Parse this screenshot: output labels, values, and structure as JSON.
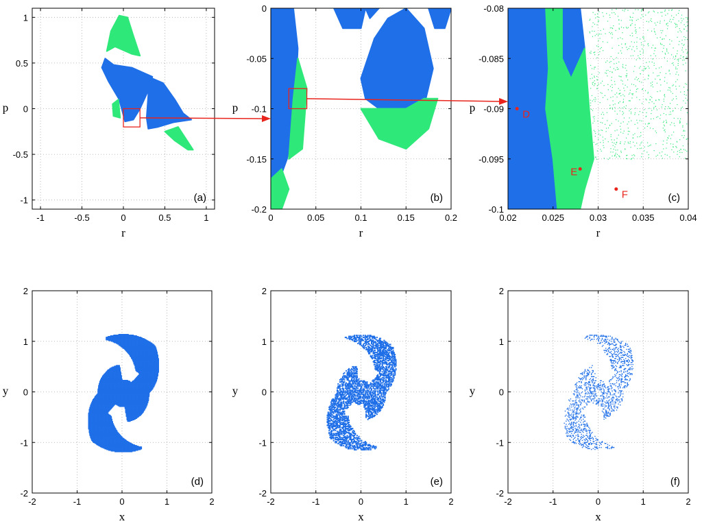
{
  "colors": {
    "blue": "#1f6fe8",
    "green": "#2ee87a",
    "annotation_red": "#e8241c",
    "grid": "#a8a8a8"
  },
  "chart_data": [
    {
      "panel": "(a)",
      "type": "scatter",
      "xlabel": "r",
      "ylabel": "p",
      "xlim": [
        -1.1,
        1.1
      ],
      "ylim": [
        -1.1,
        1.1
      ],
      "xticks": [
        -1,
        -0.5,
        0,
        0.5,
        1
      ],
      "xtick_labels": [
        "-1",
        "-0.5",
        "0",
        "0.5",
        "1"
      ],
      "yticks": [
        -1,
        -0.5,
        0,
        0.5,
        1
      ],
      "ytick_labels": [
        "-1",
        "-0.5",
        "0",
        "0.5",
        "1"
      ],
      "grid": true,
      "series": [
        {
          "color_key": "blue",
          "regions": [
            {
              "type": "poly",
              "points": [
                [
                  -0.18,
                  0.3
                ],
                [
                  -0.05,
                  0.1
                ],
                [
                  0.02,
                  -0.14
                ],
                [
                  0.12,
                  -0.12
                ],
                [
                  0.2,
                  0.0
                ],
                [
                  0.3,
                  0.2
                ],
                [
                  0.35,
                  0.35
                ],
                [
                  0.1,
                  0.45
                ],
                [
                  -0.12,
                  0.48
                ],
                [
                  -0.22,
                  0.55
                ],
                [
                  -0.26,
                  0.45
                ]
              ]
            },
            {
              "type": "poly",
              "points": [
                [
                  0.3,
                  0.35
                ],
                [
                  0.48,
                  0.28
                ],
                [
                  0.62,
                  0.1
                ],
                [
                  0.72,
                  -0.05
                ],
                [
                  0.82,
                  -0.12
                ],
                [
                  0.6,
                  -0.15
                ],
                [
                  0.42,
                  -0.2
                ],
                [
                  0.3,
                  -0.22
                ],
                [
                  0.28,
                  -0.1
                ],
                [
                  0.3,
                  0.15
                ]
              ]
            }
          ]
        },
        {
          "color_key": "green",
          "regions": [
            {
              "type": "poly",
              "points": [
                [
                  -0.2,
                  0.63
                ],
                [
                  -0.15,
                  0.85
                ],
                [
                  -0.05,
                  1.02
                ],
                [
                  0.05,
                  1.0
                ],
                [
                  0.12,
                  0.8
                ],
                [
                  0.2,
                  0.58
                ],
                [
                  0.1,
                  0.6
                ],
                [
                  -0.1,
                  0.68
                ]
              ]
            },
            {
              "type": "poly",
              "points": [
                [
                  0.5,
                  -0.25
                ],
                [
                  0.66,
                  -0.2
                ],
                [
                  0.84,
                  -0.45
                ],
                [
                  0.78,
                  -0.45
                ],
                [
                  0.62,
                  -0.35
                ]
              ]
            },
            {
              "type": "poly",
              "points": [
                [
                  -0.13,
                  0.05
                ],
                [
                  -0.06,
                  0.1
                ],
                [
                  -0.04,
                  -0.1
                ],
                [
                  -0.12,
                  -0.08
                ]
              ]
            }
          ]
        }
      ],
      "zoom_box": {
        "x": [
          0.0,
          0.2
        ],
        "y": [
          -0.2,
          0.0
        ]
      },
      "panel_label": "(a)"
    },
    {
      "panel": "(b)",
      "type": "scatter",
      "xlabel": "r",
      "ylabel": "p",
      "xlim": [
        0,
        0.2
      ],
      "ylim": [
        -0.2,
        0
      ],
      "xticks": [
        0,
        0.05,
        0.1,
        0.15,
        0.2
      ],
      "xtick_labels": [
        "0",
        "0.05",
        "0.1",
        "0.15",
        "0.2"
      ],
      "yticks": [
        -0.2,
        -0.15,
        -0.1,
        -0.05,
        0
      ],
      "ytick_labels": [
        "-0.2",
        "-0.15",
        "-0.1",
        "-0.05",
        "0"
      ],
      "grid": true,
      "series": [
        {
          "color_key": "blue",
          "regions": [
            {
              "type": "poly",
              "points": [
                [
                  0,
                  0
                ],
                [
                  0.025,
                  0
                ],
                [
                  0.03,
                  -0.04
                ],
                [
                  0.028,
                  -0.08
                ],
                [
                  0.025,
                  -0.12
                ],
                [
                  0.018,
                  -0.15
                ],
                [
                  0.01,
                  -0.17
                ],
                [
                  0,
                  -0.175
                ]
              ]
            },
            {
              "type": "poly",
              "points": [
                [
                  0.1,
                  -0.07
                ],
                [
                  0.115,
                  -0.03
                ],
                [
                  0.13,
                  -0.01
                ],
                [
                  0.15,
                  0
                ],
                [
                  0.17,
                  -0.02
                ],
                [
                  0.18,
                  -0.06
                ],
                [
                  0.172,
                  -0.09
                ],
                [
                  0.15,
                  -0.1
                ],
                [
                  0.12,
                  -0.1
                ],
                [
                  0.105,
                  -0.09
                ]
              ]
            },
            {
              "type": "poly",
              "points": [
                [
                  0.07,
                  0
                ],
                [
                  0.08,
                  -0.02
                ],
                [
                  0.1,
                  -0.02
                ],
                [
                  0.105,
                  0
                ],
                [
                  0.11,
                  -0.01
                ],
                [
                  0.12,
                  0
                ]
              ]
            },
            {
              "type": "poly",
              "points": [
                [
                  0.175,
                  0
                ],
                [
                  0.182,
                  -0.02
                ],
                [
                  0.193,
                  -0.02
                ],
                [
                  0.2,
                  0
                ]
              ]
            }
          ]
        },
        {
          "color_key": "green",
          "regions": [
            {
              "type": "poly",
              "points": [
                [
                  0,
                  -0.17
                ],
                [
                  0.012,
                  -0.16
                ],
                [
                  0.02,
                  -0.18
                ],
                [
                  0.012,
                  -0.2
                ],
                [
                  0,
                  -0.2
                ]
              ]
            },
            {
              "type": "poly",
              "points": [
                [
                  0.03,
                  -0.05
                ],
                [
                  0.04,
                  -0.08
                ],
                [
                  0.035,
                  -0.14
                ],
                [
                  0.02,
                  -0.15
                ],
                [
                  0.025,
                  -0.09
                ]
              ]
            },
            {
              "type": "poly",
              "points": [
                [
                  0.1,
                  -0.1
                ],
                [
                  0.12,
                  -0.13
                ],
                [
                  0.15,
                  -0.14
                ],
                [
                  0.175,
                  -0.12
                ],
                [
                  0.185,
                  -0.09
                ],
                [
                  0.17,
                  -0.09
                ],
                [
                  0.15,
                  -0.1
                ],
                [
                  0.12,
                  -0.1
                ]
              ]
            }
          ]
        }
      ],
      "zoom_box": {
        "x": [
          0.02,
          0.04
        ],
        "y": [
          -0.1,
          -0.08
        ]
      },
      "panel_label": "(b)"
    },
    {
      "panel": "(c)",
      "type": "scatter",
      "xlabel": "r",
      "ylabel": "p",
      "xlim": [
        0.02,
        0.04
      ],
      "ylim": [
        -0.1,
        -0.08
      ],
      "xticks": [
        0.02,
        0.025,
        0.03,
        0.035,
        0.04
      ],
      "xtick_labels": [
        "0.02",
        "0.025",
        "0.03",
        "0.035",
        "0.04"
      ],
      "yticks": [
        -0.1,
        -0.095,
        -0.09,
        -0.085,
        -0.08
      ],
      "ytick_labels": [
        "-0.1",
        "-0.095",
        "-0.09",
        "-0.085",
        "-0.08"
      ],
      "grid": true,
      "series": [
        {
          "color_key": "blue",
          "regions": [
            {
              "type": "poly",
              "points": [
                [
                  0.02,
                  -0.08
                ],
                [
                  0.0242,
                  -0.08
                ],
                [
                  0.0245,
                  -0.086
                ],
                [
                  0.0242,
                  -0.09
                ],
                [
                  0.025,
                  -0.095
                ],
                [
                  0.0255,
                  -0.1
                ],
                [
                  0.02,
                  -0.1
                ]
              ]
            },
            {
              "type": "poly",
              "points": [
                [
                  0.026,
                  -0.08
                ],
                [
                  0.028,
                  -0.08
                ],
                [
                  0.0285,
                  -0.084
                ],
                [
                  0.027,
                  -0.087
                ],
                [
                  0.026,
                  -0.085
                ]
              ]
            }
          ]
        },
        {
          "color_key": "green",
          "regions": [
            {
              "type": "poly",
              "points": [
                [
                  0.0242,
                  -0.08
                ],
                [
                  0.026,
                  -0.08
                ],
                [
                  0.026,
                  -0.085
                ],
                [
                  0.027,
                  -0.087
                ],
                [
                  0.0285,
                  -0.084
                ],
                [
                  0.029,
                  -0.09
                ],
                [
                  0.0295,
                  -0.095
                ],
                [
                  0.0285,
                  -0.098
                ],
                [
                  0.028,
                  -0.1
                ],
                [
                  0.0255,
                  -0.1
                ],
                [
                  0.025,
                  -0.095
                ],
                [
                  0.0242,
                  -0.09
                ],
                [
                  0.0245,
                  -0.086
                ]
              ]
            }
          ]
        },
        {
          "color_key": "green",
          "sparse": true,
          "regions": [
            {
              "type": "poly",
              "points": [
                [
                  0.029,
                  -0.08
                ],
                [
                  0.036,
                  -0.08
                ],
                [
                  0.039,
                  -0.085
                ],
                [
                  0.04,
                  -0.093
                ],
                [
                  0.035,
                  -0.095
                ],
                [
                  0.03,
                  -0.093
                ]
              ]
            }
          ]
        }
      ],
      "points": [
        {
          "label": "D",
          "x": 0.021,
          "y": -0.09
        },
        {
          "label": "E",
          "x": 0.028,
          "y": -0.096
        },
        {
          "label": "F",
          "x": 0.032,
          "y": -0.098
        }
      ],
      "panel_label": "(c)"
    },
    {
      "panel": "(d)",
      "type": "scatter",
      "xlabel": "x",
      "ylabel": "y",
      "xlim": [
        -2,
        2
      ],
      "ylim": [
        -2,
        2
      ],
      "xticks": [
        -2,
        -1,
        0,
        1,
        2
      ],
      "xtick_labels": [
        "-2",
        "-1",
        "0",
        "1",
        "2"
      ],
      "yticks": [
        -2,
        -1,
        0,
        1,
        2
      ],
      "ytick_labels": [
        "-2",
        "-1",
        "0",
        "1",
        "2"
      ],
      "grid": true,
      "julia_set": {
        "c_re": 0.021,
        "c_im": -0.09,
        "density": "filled"
      },
      "panel_label": "(d)"
    },
    {
      "panel": "(e)",
      "type": "scatter",
      "xlabel": "x",
      "ylabel": "y",
      "xlim": [
        -2,
        2
      ],
      "ylim": [
        -2,
        2
      ],
      "xticks": [
        -2,
        -1,
        0,
        1,
        2
      ],
      "xtick_labels": [
        "-2",
        "-1",
        "0",
        "1",
        "2"
      ],
      "yticks": [
        -2,
        -1,
        0,
        1,
        2
      ],
      "ytick_labels": [
        "-2",
        "-1",
        "0",
        "1",
        "2"
      ],
      "grid": true,
      "julia_set": {
        "c_re": 0.028,
        "c_im": -0.096,
        "density": "dust"
      },
      "panel_label": "(e)"
    },
    {
      "panel": "(f)",
      "type": "scatter",
      "xlabel": "x",
      "ylabel": "y",
      "xlim": [
        -2,
        2
      ],
      "ylim": [
        -2,
        2
      ],
      "xticks": [
        -2,
        -1,
        0,
        1,
        2
      ],
      "xtick_labels": [
        "-2",
        "-1",
        "0",
        "1",
        "2"
      ],
      "yticks": [
        -2,
        -1,
        0,
        1,
        2
      ],
      "ytick_labels": [
        "-2",
        "-1",
        "0",
        "1",
        "2"
      ],
      "grid": true,
      "julia_set": {
        "c_re": 0.032,
        "c_im": -0.098,
        "density": "sparse"
      },
      "panel_label": "(f)"
    }
  ]
}
